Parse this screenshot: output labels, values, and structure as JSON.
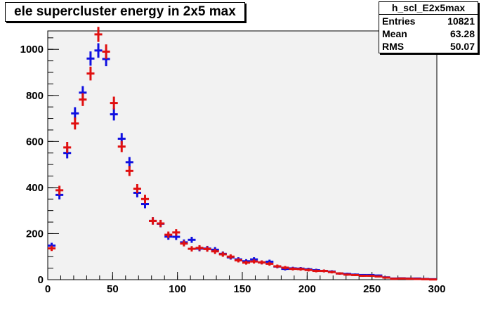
{
  "title": "ele supercluster energy in 2x5 max",
  "stats": {
    "name": "h_scl_E2x5max",
    "rows": [
      {
        "label": "Entries",
        "value": "10821"
      },
      {
        "label": "Mean",
        "value": "63.28"
      },
      {
        "label": "RMS",
        "value": "50.07"
      }
    ]
  },
  "chart_data": {
    "type": "scatter",
    "title": "ele supercluster energy in 2x5 max",
    "xlabel": "",
    "ylabel": "",
    "xlim": [
      0,
      300
    ],
    "ylim": [
      0,
      1080
    ],
    "x_ticks": [
      "0",
      "50",
      "100",
      "150",
      "200",
      "250",
      "300"
    ],
    "y_ticks": [
      "0",
      "200",
      "400",
      "600",
      "800",
      "1000"
    ],
    "bin_width": 6,
    "x": [
      3,
      9,
      15,
      21,
      27,
      33,
      39,
      45,
      51,
      57,
      63,
      69,
      75,
      81,
      87,
      93,
      99,
      105,
      111,
      117,
      123,
      129,
      135,
      141,
      147,
      153,
      159,
      165,
      171,
      177,
      183,
      189,
      195,
      201,
      207,
      213,
      219,
      225,
      231,
      237,
      243,
      249,
      255,
      261,
      267,
      273,
      279,
      285,
      291,
      297
    ],
    "series": [
      {
        "color": "#1010e0",
        "values": [
          148,
          368,
          550,
          722,
          812,
          960,
          995,
          958,
          718,
          612,
          510,
          377,
          328,
          255,
          243,
          187,
          186,
          162,
          173,
          135,
          135,
          130,
          112,
          97,
          88,
          80,
          88,
          75,
          78,
          57,
          47,
          49,
          48,
          45,
          41,
          38,
          35,
          27,
          25,
          22,
          20,
          20,
          18,
          10,
          5,
          6,
          5,
          5,
          3,
          2
        ]
      },
      {
        "color": "#e01010",
        "values": [
          136,
          388,
          574,
          678,
          782,
          895,
          1065,
          990,
          767,
          578,
          472,
          395,
          350,
          255,
          244,
          195,
          205,
          157,
          134,
          138,
          133,
          123,
          110,
          100,
          84,
          74,
          79,
          75,
          69,
          58,
          52,
          47,
          46,
          42,
          38,
          38,
          33,
          27,
          22,
          20,
          17,
          17,
          14,
          9,
          4,
          5,
          4,
          3,
          2,
          1
        ]
      }
    ]
  }
}
